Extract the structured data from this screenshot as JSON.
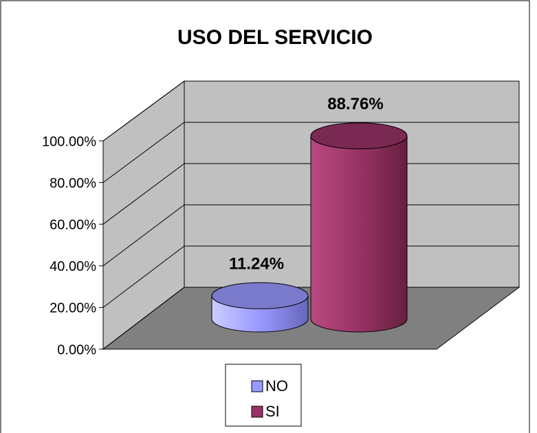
{
  "chart_data": {
    "type": "cylinder",
    "title": "USO DEL SERVICIO",
    "series": [
      {
        "name": "NO",
        "color": "#9999ff",
        "values": [
          11.24
        ],
        "value_labels": [
          "11.24%"
        ]
      },
      {
        "name": "SI",
        "color": "#993366",
        "values": [
          88.76
        ],
        "value_labels": [
          "88.76%"
        ]
      }
    ],
    "ylim": [
      0,
      100
    ],
    "yticks": [
      {
        "value": 0,
        "label": "0.00%"
      },
      {
        "value": 20,
        "label": "20.00%"
      },
      {
        "value": 40,
        "label": "40.00%"
      },
      {
        "value": 60,
        "label": "60.00%"
      },
      {
        "value": 80,
        "label": "80.00%"
      },
      {
        "value": 100,
        "label": "100.00%"
      }
    ],
    "grid": true
  }
}
